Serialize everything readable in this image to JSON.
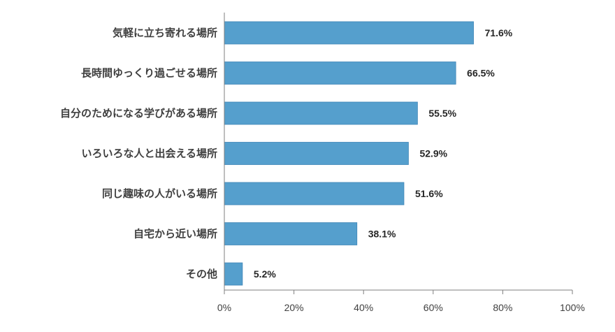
{
  "chart_data": {
    "type": "bar",
    "orientation": "horizontal",
    "categories": [
      "気軽に立ち寄れる場所",
      "長時間ゆっくり過ごせる場所",
      "自分のためになる学びがある場所",
      "いろいろな人と出会える場所",
      "同じ趣味の人がいる場所",
      "自宅から近い場所",
      "その他"
    ],
    "values": [
      71.6,
      66.5,
      55.5,
      52.9,
      51.6,
      38.1,
      5.2
    ],
    "value_labels": [
      "71.6%",
      "66.5%",
      "55.5%",
      "52.9%",
      "51.6%",
      "38.1%",
      "5.2%"
    ],
    "xlim": [
      0,
      100
    ],
    "ticks": [
      0,
      20,
      40,
      60,
      80,
      100
    ],
    "tick_labels": [
      "0%",
      "20%",
      "40%",
      "60%",
      "80%",
      "100%"
    ],
    "bar_color": "#559fcd",
    "bar_border_color": "#3f86b7",
    "grid": false,
    "legend": "none"
  }
}
